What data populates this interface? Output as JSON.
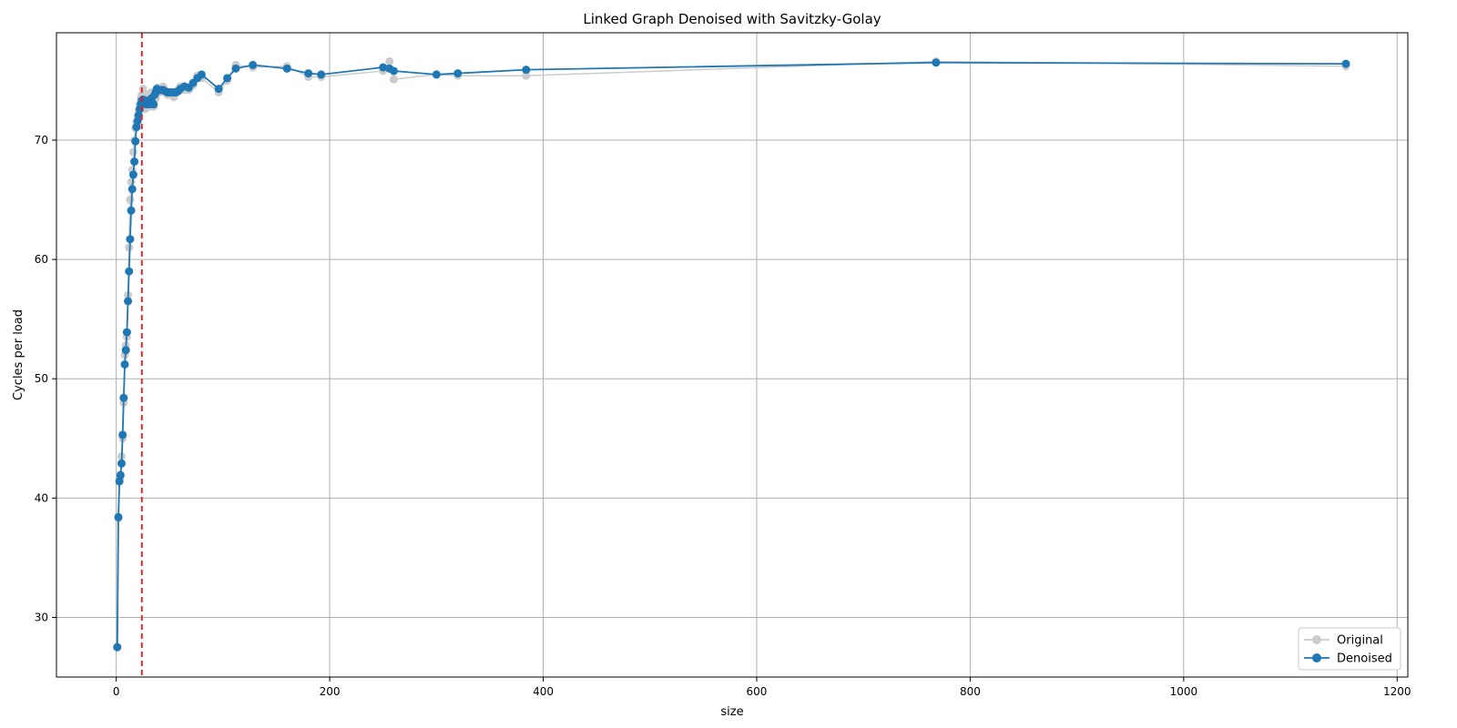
{
  "chart_data": {
    "type": "line",
    "title": "Linked Graph Denoised with Savitzky-Golay",
    "xlabel": "size",
    "ylabel": "Cycles per load",
    "xlim": [
      -56,
      1210
    ],
    "ylim": [
      25,
      79
    ],
    "xticks": [
      0,
      200,
      400,
      600,
      800,
      1000,
      1200
    ],
    "yticks": [
      30,
      40,
      50,
      60,
      70
    ],
    "grid": true,
    "legend_position": "lower-right",
    "vline": {
      "x": 24,
      "style": "dashed",
      "color": "#e41a1c"
    },
    "colors": {
      "original": "#cccccc",
      "denoised": "#1f77b4"
    },
    "series": [
      {
        "name": "Original",
        "x": [
          1,
          2,
          3,
          4,
          5,
          6,
          7,
          8,
          9,
          10,
          11,
          12,
          13,
          14,
          15,
          16,
          17,
          18,
          19,
          20,
          21,
          22,
          23,
          24,
          25,
          26,
          27,
          28,
          29,
          30,
          31,
          32,
          33,
          34,
          35,
          36,
          37,
          38,
          39,
          40,
          42,
          44,
          46,
          48,
          50,
          52,
          54,
          56,
          58,
          60,
          64,
          68,
          72,
          76,
          80,
          96,
          104,
          112,
          128,
          160,
          180,
          192,
          250,
          256,
          260,
          300,
          320,
          384,
          768,
          1152
        ],
        "y": [
          27.5,
          38.3,
          41.5,
          42.0,
          43.5,
          45.0,
          48.0,
          52.0,
          52.8,
          53.5,
          57.0,
          61.0,
          65.0,
          66.5,
          67.5,
          69.0,
          70.0,
          71.0,
          71.5,
          72.0,
          72.5,
          73.0,
          73.5,
          73.8,
          74.3,
          73.0,
          72.6,
          73.0,
          73.8,
          73.2,
          72.8,
          73.5,
          74.0,
          73.0,
          72.8,
          74.0,
          73.5,
          74.2,
          74.4,
          74.0,
          74.2,
          74.5,
          74.0,
          73.8,
          74.0,
          74.0,
          73.6,
          74.0,
          74.2,
          74.5,
          74.2,
          74.2,
          74.6,
          75.4,
          75.2,
          74.0,
          75.0,
          76.3,
          76.1,
          76.2,
          75.3,
          75.3,
          75.8,
          76.6,
          75.1,
          75.5,
          75.4,
          75.4,
          76.6,
          76.2
        ]
      },
      {
        "name": "Denoised",
        "x": [
          1,
          2,
          3,
          4,
          5,
          6,
          7,
          8,
          9,
          10,
          11,
          12,
          13,
          14,
          15,
          16,
          17,
          18,
          19,
          20,
          21,
          22,
          23,
          24,
          25,
          26,
          27,
          28,
          29,
          30,
          31,
          32,
          33,
          34,
          35,
          36,
          37,
          38,
          39,
          40,
          42,
          44,
          46,
          48,
          50,
          52,
          54,
          56,
          58,
          60,
          64,
          68,
          72,
          76,
          80,
          96,
          104,
          112,
          128,
          160,
          180,
          192,
          250,
          256,
          260,
          300,
          320,
          384,
          768,
          1152
        ],
        "y": [
          27.5,
          38.4,
          41.4,
          41.9,
          42.9,
          45.3,
          48.4,
          51.2,
          52.4,
          53.9,
          56.5,
          59.0,
          61.7,
          64.1,
          65.9,
          67.1,
          68.2,
          69.9,
          71.1,
          71.6,
          72.1,
          72.6,
          73.0,
          73.3,
          73.4,
          73.2,
          73.1,
          73.0,
          73.3,
          73.2,
          73.0,
          73.3,
          73.5,
          73.1,
          73.0,
          73.8,
          74.0,
          74.3,
          74.2,
          74.2,
          74.2,
          74.2,
          74.1,
          74.0,
          74.0,
          74.0,
          74.0,
          74.0,
          74.1,
          74.3,
          74.5,
          74.4,
          74.8,
          75.2,
          75.5,
          74.3,
          75.2,
          76.0,
          76.3,
          76.0,
          75.6,
          75.5,
          76.1,
          76.0,
          75.8,
          75.5,
          75.6,
          75.9,
          76.5,
          76.4
        ]
      }
    ]
  }
}
